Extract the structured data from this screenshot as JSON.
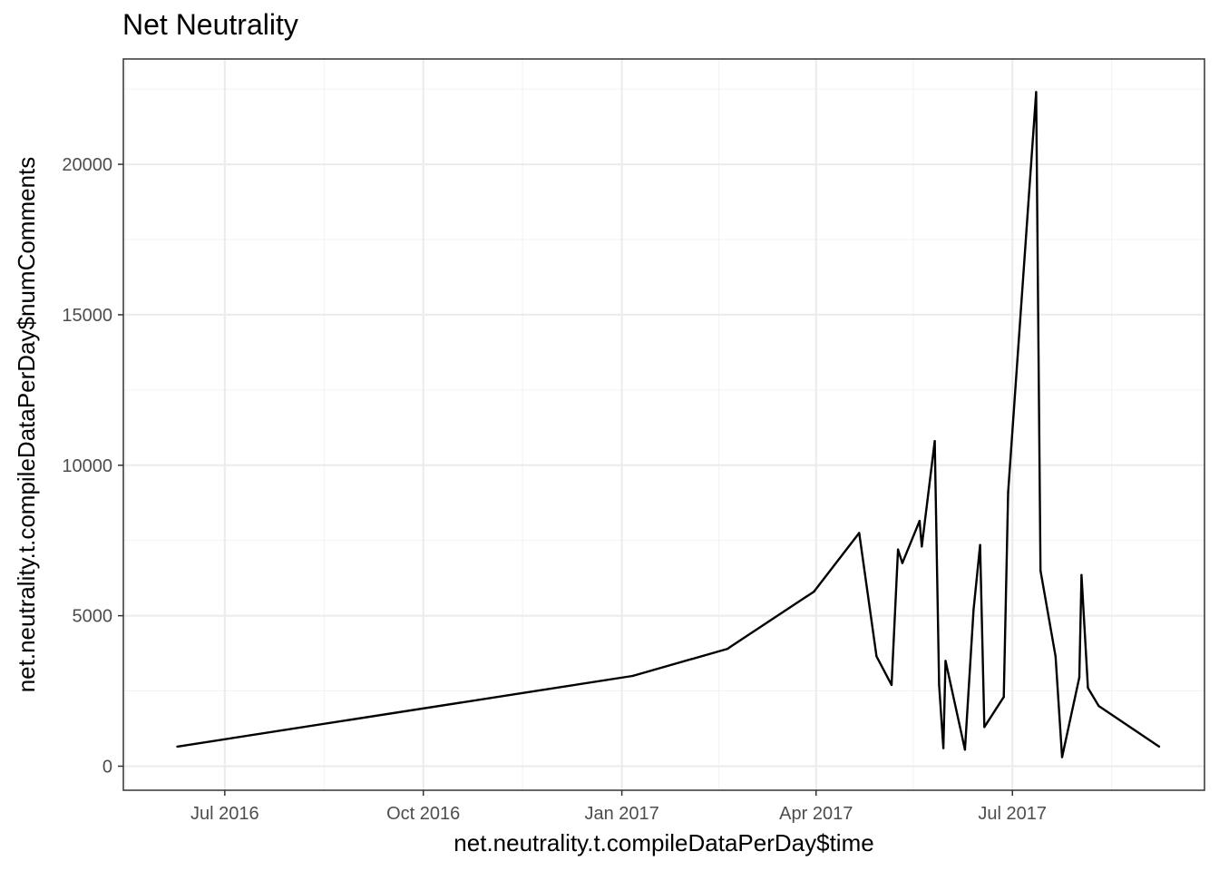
{
  "chart_data": {
    "type": "line",
    "title": "Net Neutrality",
    "xlabel": "net.neutrality.t.compileDataPerDay$time",
    "ylabel": "net.neutrality.t.compileDataPerDay$numComments",
    "x_is_date": true,
    "xlim": [
      "2016-05-15",
      "2017-09-28"
    ],
    "ylim": [
      -800,
      23500
    ],
    "x_ticks": [
      {
        "date": "2016-07-01",
        "label": "Jul 2016"
      },
      {
        "date": "2016-10-01",
        "label": "Oct 2016"
      },
      {
        "date": "2017-01-01",
        "label": "Jan 2017"
      },
      {
        "date": "2017-04-01",
        "label": "Apr 2017"
      },
      {
        "date": "2017-07-01",
        "label": "Jul 2017"
      }
    ],
    "x_minor_ticks": [
      "2016-05-16",
      "2016-08-16",
      "2016-11-16",
      "2017-02-15",
      "2017-05-16",
      "2017-08-16"
    ],
    "y_ticks": [
      0,
      5000,
      10000,
      15000,
      20000
    ],
    "y_tick_labels": [
      "0",
      "5000",
      "10000",
      "15000",
      "20000"
    ],
    "y_minor_ticks": [
      2500,
      7500,
      12500,
      17500,
      22500
    ],
    "grid": true,
    "series": [
      {
        "points": [
          {
            "x": "2016-06-09",
            "y": 650
          },
          {
            "x": "2017-01-06",
            "y": 3000
          },
          {
            "x": "2017-02-19",
            "y": 3900
          },
          {
            "x": "2017-02-20",
            "y": 3950
          },
          {
            "x": "2017-03-31",
            "y": 5800
          },
          {
            "x": "2017-04-21",
            "y": 7750
          },
          {
            "x": "2017-04-29",
            "y": 3650
          },
          {
            "x": "2017-05-06",
            "y": 2700
          },
          {
            "x": "2017-05-09",
            "y": 7200
          },
          {
            "x": "2017-05-11",
            "y": 6750
          },
          {
            "x": "2017-05-19",
            "y": 8150
          },
          {
            "x": "2017-05-20",
            "y": 7300
          },
          {
            "x": "2017-05-26",
            "y": 10800
          },
          {
            "x": "2017-05-28",
            "y": 2700
          },
          {
            "x": "2017-05-30",
            "y": 600
          },
          {
            "x": "2017-05-31",
            "y": 3500
          },
          {
            "x": "2017-06-09",
            "y": 550
          },
          {
            "x": "2017-06-13",
            "y": 5200
          },
          {
            "x": "2017-06-16",
            "y": 7350
          },
          {
            "x": "2017-06-18",
            "y": 1300
          },
          {
            "x": "2017-06-27",
            "y": 2300
          },
          {
            "x": "2017-06-29",
            "y": 9100
          },
          {
            "x": "2017-07-12",
            "y": 22400
          },
          {
            "x": "2017-07-14",
            "y": 6500
          },
          {
            "x": "2017-07-21",
            "y": 3650
          },
          {
            "x": "2017-07-24",
            "y": 300
          },
          {
            "x": "2017-08-01",
            "y": 2950
          },
          {
            "x": "2017-08-02",
            "y": 6350
          },
          {
            "x": "2017-08-05",
            "y": 2600
          },
          {
            "x": "2017-08-10",
            "y": 2000
          },
          {
            "x": "2017-09-07",
            "y": 650
          }
        ]
      }
    ]
  }
}
